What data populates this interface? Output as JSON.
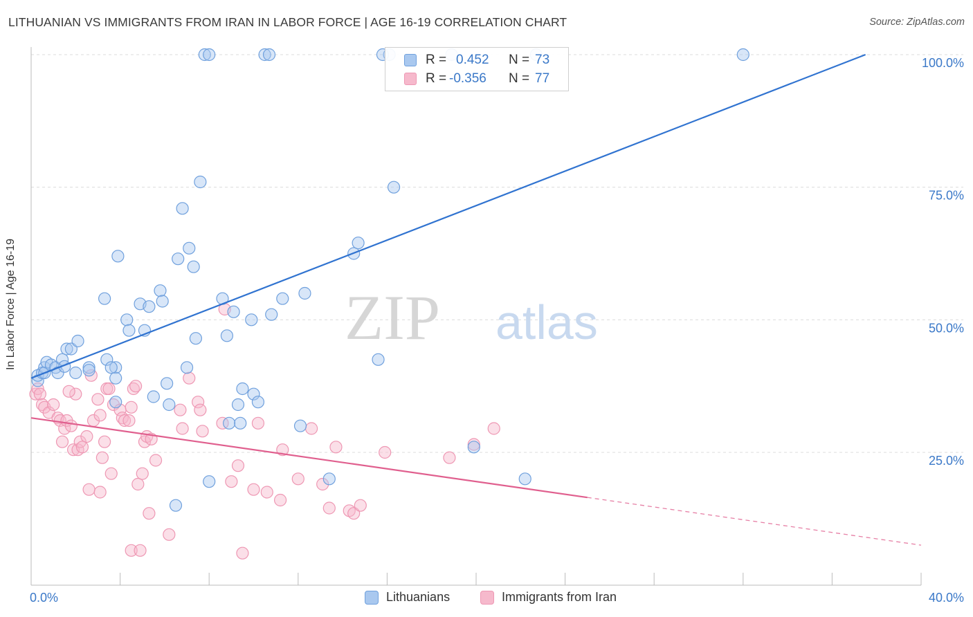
{
  "title": "LITHUANIAN VS IMMIGRANTS FROM IRAN IN LABOR FORCE | AGE 16-19 CORRELATION CHART",
  "source": "Source: ZipAtlas.com",
  "watermark": {
    "zip": "ZIP",
    "atlas": "atlas"
  },
  "colors": {
    "blue_fill": "#a9c8ef",
    "blue_stroke": "#6fa0dd",
    "blue_line": "#3073d0",
    "pink_fill": "#f6b9cc",
    "pink_stroke": "#ee97b3",
    "pink_line": "#e05f8e",
    "grid": "#dcdcdc",
    "tick_text": "#3a78c8"
  },
  "stats": {
    "r_label": "R =",
    "n_label": "N =",
    "rows": [
      {
        "r": "0.452",
        "n": "73"
      },
      {
        "r": "-0.356",
        "n": "77"
      }
    ]
  },
  "legend": {
    "items": [
      "Lithuanians",
      "Immigrants from Iran"
    ]
  },
  "chart_data": {
    "type": "scatter",
    "title": "LITHUANIAN VS IMMIGRANTS FROM IRAN IN LABOR FORCE | AGE 16-19 CORRELATION CHART",
    "ylabel": "In Labor Force | Age 16-19",
    "xlabel": "",
    "xlim": [
      0,
      40
    ],
    "ylim": [
      0,
      107
    ],
    "x_tick_labels": [
      "0.0%",
      "40.0%"
    ],
    "y_ticks": [
      25,
      50,
      75,
      100
    ],
    "y_tick_labels": [
      "25.0%",
      "50.0%",
      "75.0%",
      "100.0%"
    ],
    "grid": "horizontal dashed",
    "legend_position": "bottom-center",
    "series": [
      {
        "name": "Lithuanians",
        "r": 0.452,
        "n": 73,
        "trend": {
          "x": [
            0,
            37.5
          ],
          "y": [
            39,
            100
          ]
        },
        "points": [
          [
            0.3,
            38.5
          ],
          [
            0.3,
            39.5
          ],
          [
            0.5,
            40
          ],
          [
            0.6,
            41
          ],
          [
            0.6,
            40
          ],
          [
            0.7,
            42
          ],
          [
            0.9,
            41.5
          ],
          [
            1.1,
            41
          ],
          [
            1.2,
            40
          ],
          [
            1.4,
            42.5
          ],
          [
            1.5,
            41.2
          ],
          [
            1.6,
            44.5
          ],
          [
            1.8,
            44.5
          ],
          [
            2.0,
            40
          ],
          [
            2.6,
            41
          ],
          [
            2.6,
            40.5
          ],
          [
            2.1,
            46
          ],
          [
            3.4,
            42.5
          ],
          [
            3.8,
            41
          ],
          [
            3.8,
            34.5
          ],
          [
            3.8,
            39
          ],
          [
            3.3,
            54
          ],
          [
            3.9,
            62
          ],
          [
            4.3,
            50
          ],
          [
            4.4,
            48
          ],
          [
            4.9,
            53
          ],
          [
            5.1,
            48
          ],
          [
            5.3,
            52.5
          ],
          [
            5.5,
            35.5
          ],
          [
            5.8,
            55.5
          ],
          [
            5.9,
            53.5
          ],
          [
            6.1,
            38
          ],
          [
            6.2,
            34
          ],
          [
            6.6,
            61.5
          ],
          [
            6.8,
            71
          ],
          [
            7.0,
            41
          ],
          [
            7.1,
            63.5
          ],
          [
            7.3,
            60
          ],
          [
            7.4,
            46.5
          ],
          [
            7.6,
            76
          ],
          [
            7.8,
            100
          ],
          [
            8.0,
            100
          ],
          [
            8.0,
            19.5
          ],
          [
            8.6,
            54
          ],
          [
            8.8,
            47
          ],
          [
            8.9,
            30.5
          ],
          [
            9.1,
            51.5
          ],
          [
            9.3,
            34
          ],
          [
            9.4,
            30.5
          ],
          [
            9.5,
            37
          ],
          [
            9.9,
            50
          ],
          [
            10.0,
            36
          ],
          [
            10.2,
            34.5
          ],
          [
            10.5,
            100
          ],
          [
            10.7,
            100
          ],
          [
            10.8,
            51
          ],
          [
            11.3,
            54
          ],
          [
            12.3,
            55
          ],
          [
            12.1,
            30
          ],
          [
            13.4,
            20
          ],
          [
            14.5,
            62.5
          ],
          [
            14.7,
            64.5
          ],
          [
            15.6,
            42.5
          ],
          [
            16.1,
            100
          ],
          [
            16.3,
            75
          ],
          [
            18.9,
            100
          ],
          [
            22.7,
            100
          ],
          [
            19.9,
            26
          ],
          [
            22.2,
            20
          ],
          [
            32.0,
            100
          ],
          [
            6.5,
            15
          ],
          [
            15.8,
            100
          ],
          [
            3.6,
            41
          ]
        ]
      },
      {
        "name": "Immigrants from Iran",
        "r": -0.356,
        "n": 77,
        "trend": {
          "x": [
            0,
            25
          ],
          "y": [
            31.5,
            16.5
          ]
        },
        "trend_dashed": {
          "x": [
            25,
            40
          ],
          "y": [
            16.5,
            7.5
          ]
        },
        "points": [
          [
            0.2,
            36
          ],
          [
            0.3,
            37
          ],
          [
            0.4,
            36
          ],
          [
            0.5,
            34
          ],
          [
            0.6,
            33.5
          ],
          [
            0.8,
            32.5
          ],
          [
            1.0,
            34
          ],
          [
            1.2,
            31.5
          ],
          [
            1.3,
            31
          ],
          [
            1.4,
            27
          ],
          [
            1.5,
            29.5
          ],
          [
            1.6,
            31
          ],
          [
            1.8,
            30
          ],
          [
            1.9,
            25.5
          ],
          [
            2.0,
            36
          ],
          [
            2.1,
            25.5
          ],
          [
            2.2,
            27
          ],
          [
            2.3,
            26
          ],
          [
            2.5,
            28
          ],
          [
            2.6,
            18
          ],
          [
            2.7,
            39.5
          ],
          [
            2.8,
            31
          ],
          [
            3.0,
            35
          ],
          [
            3.1,
            32
          ],
          [
            3.2,
            24
          ],
          [
            3.3,
            27
          ],
          [
            3.4,
            37
          ],
          [
            3.5,
            37
          ],
          [
            3.6,
            21
          ],
          [
            3.7,
            34
          ],
          [
            4.0,
            33
          ],
          [
            4.1,
            31.5
          ],
          [
            4.2,
            31
          ],
          [
            4.4,
            31
          ],
          [
            4.5,
            33.5
          ],
          [
            4.5,
            6.5
          ],
          [
            4.6,
            37
          ],
          [
            4.7,
            37.5
          ],
          [
            4.8,
            19
          ],
          [
            4.9,
            6.5
          ],
          [
            5.0,
            21
          ],
          [
            5.1,
            27
          ],
          [
            5.2,
            28
          ],
          [
            5.3,
            13.5
          ],
          [
            5.4,
            27.5
          ],
          [
            5.6,
            23.5
          ],
          [
            6.2,
            9.5
          ],
          [
            6.7,
            33
          ],
          [
            6.8,
            29.5
          ],
          [
            7.1,
            39
          ],
          [
            7.5,
            34.5
          ],
          [
            7.6,
            33
          ],
          [
            7.7,
            29
          ],
          [
            8.6,
            30.5
          ],
          [
            8.7,
            52
          ],
          [
            9.3,
            22.5
          ],
          [
            9.5,
            6
          ],
          [
            10.0,
            18
          ],
          [
            10.2,
            30.5
          ],
          [
            10.6,
            17.5
          ],
          [
            11.2,
            16
          ],
          [
            11.3,
            25.5
          ],
          [
            12.0,
            20
          ],
          [
            12.6,
            29.5
          ],
          [
            13.1,
            19
          ],
          [
            13.4,
            14.5
          ],
          [
            13.7,
            26
          ],
          [
            14.3,
            14
          ],
          [
            14.5,
            13.5
          ],
          [
            14.8,
            15
          ],
          [
            15.9,
            25
          ],
          [
            18.8,
            24
          ],
          [
            19.9,
            26.5
          ],
          [
            20.8,
            29.5
          ],
          [
            9.0,
            19.5
          ],
          [
            3.1,
            17.5
          ],
          [
            1.7,
            36.5
          ]
        ]
      }
    ]
  }
}
